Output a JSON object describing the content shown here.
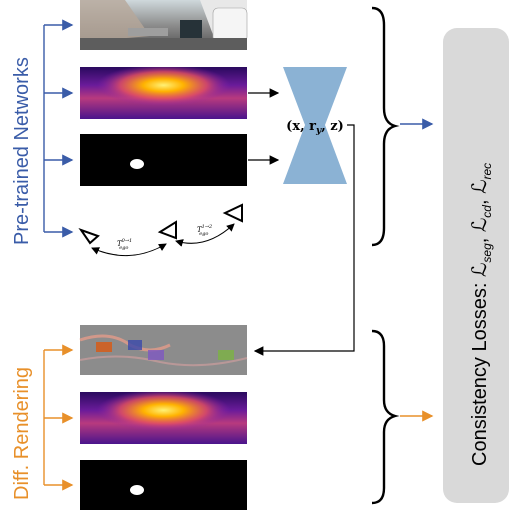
{
  "labels": {
    "pretrained": "Pre-trained Networks",
    "diff_rendering": "Diff. Rendering",
    "consistency": "Consistency Losses: ℒ",
    "loss_seg_sub": "seg",
    "loss_cd_sub": "cd",
    "loss_rec_sub": "rec",
    "loss_L": "ℒ",
    "pose_params": "(x, r",
    "pose_sub": "y",
    "pose_end": ", z)",
    "ego_01_main": "T",
    "ego_01_sup": "0→1",
    "ego_01_sub": "ego",
    "ego_12_main": "T",
    "ego_12_sup": "1→2",
    "ego_12_sub": "ego"
  },
  "colors": {
    "blue": "#3a5ca8",
    "orange": "#e8902a",
    "network": "#8bb2d4",
    "loss_box": "#d9d9d9"
  }
}
